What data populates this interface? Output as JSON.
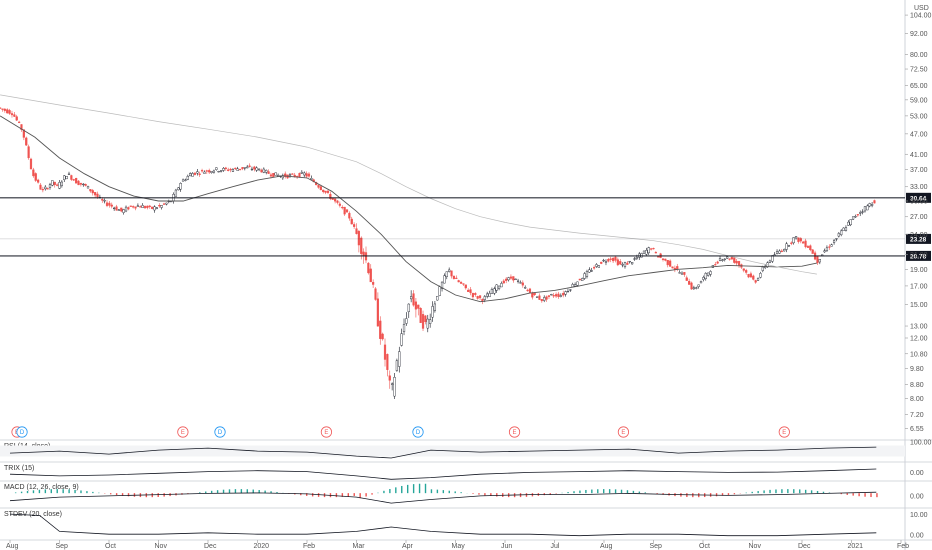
{
  "currency": "USD",
  "chart_data": {
    "type": "candlestick",
    "price_axis": {
      "scale": "log",
      "ticks": [
        "104.00",
        "92.00",
        "80.00",
        "72.50",
        "65.00",
        "59.00",
        "53.00",
        "47.00",
        "41.00",
        "37.00",
        "33.00",
        "30.00",
        "27.00",
        "24.00",
        "21.00",
        "19.00",
        "17.00",
        "15.00",
        "13.00",
        "12.00",
        "10.80",
        "9.80",
        "8.80",
        "8.00",
        "7.20",
        "6.55"
      ],
      "range": [
        6.4,
        112
      ]
    },
    "time_axis": {
      "labels": [
        "Aug",
        "Sep",
        "Oct",
        "Nov",
        "Dec",
        "2020",
        "Feb",
        "Mar",
        "Apr",
        "May",
        "Jun",
        "Jul",
        "Aug",
        "Sep",
        "Oct",
        "Nov",
        "Dec",
        "2021",
        "Feb"
      ],
      "month_index": [
        0,
        1,
        2,
        3,
        4,
        5,
        6,
        7,
        8,
        9,
        10,
        11,
        12,
        13,
        14,
        15,
        16,
        17,
        18
      ]
    },
    "price_path": [
      [
        -0.2,
        56
      ],
      [
        0.1,
        54
      ],
      [
        0.3,
        48
      ],
      [
        0.5,
        36
      ],
      [
        0.7,
        32
      ],
      [
        0.9,
        34
      ],
      [
        1.0,
        33
      ],
      [
        1.2,
        36
      ],
      [
        1.4,
        34
      ],
      [
        1.6,
        33
      ],
      [
        1.9,
        30
      ],
      [
        2.1,
        29
      ],
      [
        2.3,
        28
      ],
      [
        2.5,
        29
      ],
      [
        2.7,
        29
      ],
      [
        2.9,
        28.5
      ],
      [
        3.1,
        29
      ],
      [
        3.3,
        30
      ],
      [
        3.5,
        34
      ],
      [
        3.7,
        36
      ],
      [
        3.9,
        36.5
      ],
      [
        4.2,
        37
      ],
      [
        4.5,
        37
      ],
      [
        4.8,
        37.5
      ],
      [
        5.1,
        37
      ],
      [
        5.3,
        36
      ],
      [
        5.5,
        35.5
      ],
      [
        5.8,
        35.5
      ],
      [
        6.0,
        36
      ],
      [
        6.1,
        35
      ],
      [
        6.3,
        33
      ],
      [
        6.5,
        31
      ],
      [
        6.7,
        29
      ],
      [
        6.9,
        27
      ],
      [
        7.0,
        25
      ],
      [
        7.1,
        23
      ],
      [
        7.2,
        21
      ],
      [
        7.3,
        19
      ],
      [
        7.4,
        16
      ],
      [
        7.5,
        13
      ],
      [
        7.6,
        11
      ],
      [
        7.7,
        9
      ],
      [
        7.75,
        8.2
      ],
      [
        7.85,
        10
      ],
      [
        8.0,
        13
      ],
      [
        8.15,
        16
      ],
      [
        8.3,
        14
      ],
      [
        8.45,
        13
      ],
      [
        8.6,
        15
      ],
      [
        8.75,
        17
      ],
      [
        8.9,
        19
      ],
      [
        9.0,
        18
      ],
      [
        9.2,
        17
      ],
      [
        9.4,
        16
      ],
      [
        9.6,
        15.5
      ],
      [
        9.8,
        16.5
      ],
      [
        10.0,
        17.5
      ],
      [
        10.2,
        18
      ],
      [
        10.4,
        17
      ],
      [
        10.6,
        16
      ],
      [
        10.8,
        15.5
      ],
      [
        11.0,
        16
      ],
      [
        11.2,
        16
      ],
      [
        11.4,
        17
      ],
      [
        11.6,
        18
      ],
      [
        11.8,
        19
      ],
      [
        12.0,
        20
      ],
      [
        12.2,
        20.5
      ],
      [
        12.4,
        19.5
      ],
      [
        12.6,
        20
      ],
      [
        12.8,
        21
      ],
      [
        13.0,
        22
      ],
      [
        13.1,
        21
      ],
      [
        13.3,
        20
      ],
      [
        13.5,
        19
      ],
      [
        13.7,
        18
      ],
      [
        13.85,
        16.5
      ],
      [
        14.0,
        17.5
      ],
      [
        14.2,
        19
      ],
      [
        14.4,
        20.5
      ],
      [
        14.6,
        20.5
      ],
      [
        14.8,
        19.5
      ],
      [
        15.0,
        18
      ],
      [
        15.1,
        17.5
      ],
      [
        15.3,
        19.5
      ],
      [
        15.5,
        21
      ],
      [
        15.7,
        22
      ],
      [
        15.9,
        23.5
      ],
      [
        16.0,
        23
      ],
      [
        16.2,
        22
      ],
      [
        16.35,
        20
      ],
      [
        16.5,
        21.5
      ],
      [
        16.7,
        23
      ],
      [
        16.9,
        25
      ],
      [
        17.1,
        27
      ],
      [
        17.3,
        28.5
      ],
      [
        17.5,
        30
      ]
    ],
    "moving_averages": [
      {
        "points": [
          [
            -0.2,
            53
          ],
          [
            0.5,
            46
          ],
          [
            1.0,
            40
          ],
          [
            1.5,
            36
          ],
          [
            2.0,
            33
          ],
          [
            2.5,
            31
          ],
          [
            3.0,
            30
          ],
          [
            3.5,
            30
          ],
          [
            4.0,
            31.5
          ],
          [
            4.5,
            33
          ],
          [
            5.0,
            34.5
          ],
          [
            5.5,
            35.5
          ],
          [
            6.0,
            35
          ],
          [
            6.5,
            32
          ],
          [
            7.0,
            28
          ],
          [
            7.5,
            24
          ],
          [
            8.0,
            20
          ],
          [
            8.5,
            17.5
          ],
          [
            9.0,
            16
          ],
          [
            9.5,
            15.3
          ],
          [
            10.0,
            15.6
          ],
          [
            10.5,
            16.2
          ],
          [
            11.0,
            16.5
          ],
          [
            11.5,
            17
          ],
          [
            12.0,
            17.6
          ],
          [
            12.5,
            18.2
          ],
          [
            13.0,
            18.6
          ],
          [
            13.5,
            19
          ],
          [
            14.0,
            19.2
          ],
          [
            14.5,
            19.5
          ],
          [
            15.0,
            19.4
          ],
          [
            15.5,
            19.3
          ],
          [
            16.0,
            19.4
          ],
          [
            16.3,
            19.8
          ]
        ]
      },
      {
        "points": [
          [
            -0.2,
            61
          ],
          [
            1.0,
            57
          ],
          [
            2.0,
            54
          ],
          [
            3.0,
            51
          ],
          [
            4.0,
            48.5
          ],
          [
            5.0,
            46
          ],
          [
            6.0,
            43
          ],
          [
            7.0,
            39
          ],
          [
            7.5,
            36
          ],
          [
            8.0,
            33
          ],
          [
            8.5,
            30.5
          ],
          [
            9.0,
            28.5
          ],
          [
            9.5,
            27
          ],
          [
            10.0,
            26
          ],
          [
            10.5,
            25.2
          ],
          [
            11.0,
            24.7
          ],
          [
            11.5,
            24.2
          ],
          [
            12.0,
            23.8
          ],
          [
            12.5,
            23.4
          ],
          [
            13.0,
            23
          ],
          [
            13.5,
            22.4
          ],
          [
            14.0,
            21.7
          ],
          [
            14.5,
            20.8
          ],
          [
            15.0,
            20
          ],
          [
            15.5,
            19.3
          ],
          [
            16.0,
            18.7
          ],
          [
            16.3,
            18.4
          ]
        ]
      }
    ],
    "horizontal_levels": [
      {
        "value": 30.64,
        "label": "30.64",
        "color": "#131722"
      },
      {
        "value": 23.28,
        "label": "23.28",
        "color": "#131722"
      },
      {
        "value": 20.78,
        "label": "20.78",
        "color": "#131722"
      }
    ],
    "event_badges": [
      {
        "month_index": -0.1,
        "letter": "E",
        "color": "#f05a5a"
      },
      {
        "month_index": 0.0,
        "letter": "D",
        "color": "#2196f3"
      },
      {
        "month_index": 3.25,
        "letter": "E",
        "color": "#f05a5a"
      },
      {
        "month_index": 4.0,
        "letter": "D",
        "color": "#2196f3"
      },
      {
        "month_index": 6.15,
        "letter": "E",
        "color": "#f05a5a"
      },
      {
        "month_index": 8.0,
        "letter": "D",
        "color": "#2196f3"
      },
      {
        "month_index": 9.95,
        "letter": "E",
        "color": "#f05a5a"
      },
      {
        "month_index": 12.15,
        "letter": "E",
        "color": "#f05a5a"
      },
      {
        "month_index": 15.4,
        "letter": "E",
        "color": "#f05a5a"
      },
      {
        "month_index": 18.8,
        "letter": "E",
        "color": "#f05a5a"
      }
    ],
    "indicators": [
      {
        "label": "RSI (14, close)",
        "ticks": [
          "100.00"
        ],
        "type": "rsi",
        "series": [
          [
            0.0,
            0.45
          ],
          [
            1.0,
            0.55
          ],
          [
            2.0,
            0.4
          ],
          [
            3.0,
            0.6
          ],
          [
            4.0,
            0.7
          ],
          [
            5.0,
            0.55
          ],
          [
            6.0,
            0.5
          ],
          [
            7.0,
            0.3
          ],
          [
            7.7,
            0.2
          ],
          [
            8.5,
            0.6
          ],
          [
            9.5,
            0.5
          ],
          [
            10.5,
            0.55
          ],
          [
            11.5,
            0.6
          ],
          [
            12.5,
            0.65
          ],
          [
            13.5,
            0.45
          ],
          [
            14.5,
            0.55
          ],
          [
            15.5,
            0.6
          ],
          [
            16.5,
            0.7
          ],
          [
            17.5,
            0.75
          ]
        ]
      },
      {
        "label": "TRIX (15)",
        "ticks": [
          "0.00"
        ],
        "type": "line",
        "series": [
          [
            0.0,
            0.4
          ],
          [
            1.0,
            0.3
          ],
          [
            2.0,
            0.35
          ],
          [
            3.0,
            0.45
          ],
          [
            4.0,
            0.55
          ],
          [
            5.0,
            0.6
          ],
          [
            6.0,
            0.55
          ],
          [
            7.0,
            0.3
          ],
          [
            7.7,
            0.1
          ],
          [
            8.5,
            0.2
          ],
          [
            9.5,
            0.4
          ],
          [
            10.5,
            0.5
          ],
          [
            11.5,
            0.55
          ],
          [
            12.5,
            0.6
          ],
          [
            13.5,
            0.55
          ],
          [
            14.5,
            0.5
          ],
          [
            15.5,
            0.52
          ],
          [
            16.5,
            0.6
          ],
          [
            17.5,
            0.7
          ]
        ]
      },
      {
        "label": "MACD (12, 26, close, 9)",
        "ticks": [
          "0.00"
        ],
        "type": "macd",
        "series": [
          [
            0.0,
            0.3
          ],
          [
            1.0,
            0.45
          ],
          [
            2.0,
            0.5
          ],
          [
            3.0,
            0.55
          ],
          [
            4.0,
            0.6
          ],
          [
            5.0,
            0.62
          ],
          [
            6.0,
            0.58
          ],
          [
            7.0,
            0.45
          ],
          [
            7.7,
            0.2
          ],
          [
            8.5,
            0.35
          ],
          [
            9.5,
            0.5
          ],
          [
            10.5,
            0.55
          ],
          [
            11.5,
            0.55
          ],
          [
            12.5,
            0.6
          ],
          [
            13.5,
            0.55
          ],
          [
            14.5,
            0.52
          ],
          [
            15.5,
            0.55
          ],
          [
            16.5,
            0.6
          ],
          [
            17.5,
            0.65
          ]
        ]
      },
      {
        "label": "STDEV (20, close)",
        "ticks": [
          "10.00",
          "0.00"
        ],
        "type": "line",
        "series": [
          [
            0.0,
            0.9
          ],
          [
            0.6,
            0.85
          ],
          [
            1.0,
            0.3
          ],
          [
            2.0,
            0.2
          ],
          [
            3.0,
            0.2
          ],
          [
            4.0,
            0.25
          ],
          [
            5.0,
            0.2
          ],
          [
            6.0,
            0.2
          ],
          [
            7.0,
            0.3
          ],
          [
            7.7,
            0.45
          ],
          [
            8.5,
            0.3
          ],
          [
            9.5,
            0.2
          ],
          [
            10.5,
            0.2
          ],
          [
            11.5,
            0.15
          ],
          [
            12.5,
            0.2
          ],
          [
            13.5,
            0.2
          ],
          [
            14.5,
            0.15
          ],
          [
            15.5,
            0.15
          ],
          [
            16.5,
            0.2
          ],
          [
            17.5,
            0.25
          ]
        ]
      }
    ]
  }
}
